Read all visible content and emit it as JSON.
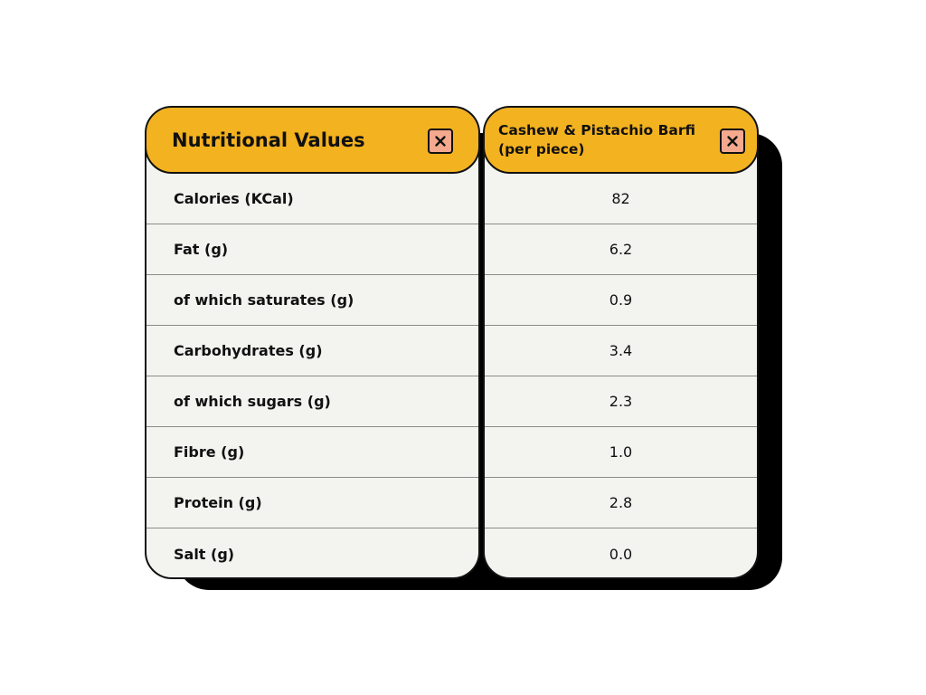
{
  "left_panel": {
    "title": "Nutritional Values",
    "close_icon": "close-icon",
    "rows": [
      "Calories (KCal)",
      "Fat (g)",
      "of which saturates (g)",
      "Carbohydrates (g)",
      "of which sugars (g)",
      "Fibre (g)",
      "Protein (g)",
      "Salt (g)"
    ]
  },
  "right_panel": {
    "title": "Cashew & Pistachio Barfi (per piece)",
    "close_icon": "close-icon",
    "rows": [
      "82",
      "6.2",
      "0.9",
      "3.4",
      "2.3",
      "1.0",
      "2.8",
      "0.0"
    ]
  },
  "colors": {
    "header": "#f3b21f",
    "close_button": "#f4a98e",
    "body": "#f3f4f0",
    "outline": "#111111"
  }
}
